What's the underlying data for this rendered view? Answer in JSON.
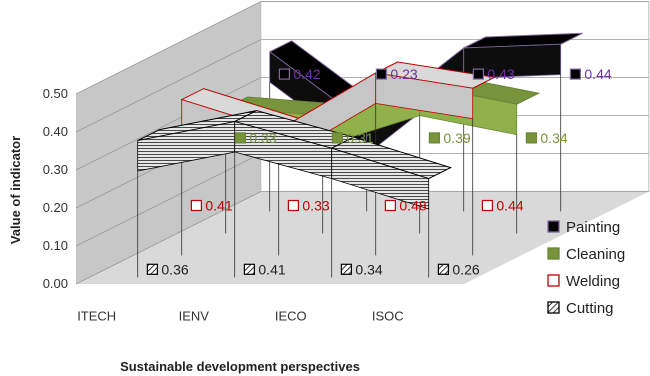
{
  "chart_data": {
    "type": "line",
    "chart_style": "3d-ribbon",
    "title": "",
    "xlabel": "Sustainable development perspectives",
    "ylabel": "Value of indicator",
    "categories": [
      "ITECH",
      "IENV",
      "IECO",
      "ISOC"
    ],
    "ylim": [
      0,
      0.5
    ],
    "y_ticks": [
      "0.00",
      "0.10",
      "0.20",
      "0.30",
      "0.40",
      "0.50"
    ],
    "grid": true,
    "legend_position": "right",
    "series": [
      {
        "name": "Painting",
        "values": [
          0.42,
          0.23,
          0.43,
          0.44
        ],
        "labels": [
          "0.42",
          "0.23",
          "0.43",
          "0.44"
        ],
        "color": "#000000",
        "label_color": "#7030A0",
        "edge_color": "#7F6A9F"
      },
      {
        "name": "Cleaning",
        "values": [
          0.33,
          0.31,
          0.39,
          0.34
        ],
        "labels": [
          "0.33",
          "0.31",
          "0.39",
          "0.34"
        ],
        "color": "#77933C",
        "label_color": "#77933C",
        "edge_color": "#77933C"
      },
      {
        "name": "Welding",
        "values": [
          0.41,
          0.33,
          0.48,
          0.44
        ],
        "labels": [
          "0.41",
          "0.33",
          "0.48",
          "0.44"
        ],
        "color": "#C0C0C0",
        "label_color": "#C00000",
        "edge_color": "#C00000"
      },
      {
        "name": "Cutting",
        "values": [
          0.36,
          0.41,
          0.34,
          0.26
        ],
        "labels": [
          "0.36",
          "0.41",
          "0.34",
          "0.26"
        ],
        "color": "#D9D9D9",
        "label_color": "#222222",
        "edge_color": "#000000"
      }
    ]
  }
}
